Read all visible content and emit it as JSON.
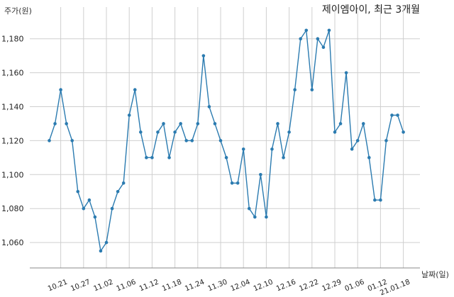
{
  "chart_data": {
    "type": "line",
    "title": "제이엠아이, 최근 3개월",
    "ylabel": "주가(원)",
    "xlabel": "날짜(일)",
    "ylim": [
      1045,
      1192
    ],
    "y_ticks": [
      1060,
      1080,
      1100,
      1120,
      1140,
      1160,
      1180
    ],
    "y_tick_labels": [
      "1,060",
      "1,080",
      "1,100",
      "1,120",
      "1,140",
      "1,160",
      "1,180"
    ],
    "x_tick_labels": [
      "10.21",
      "10.27",
      "11.02",
      "11.06",
      "11.12",
      "11.18",
      "11.24",
      "11.30",
      "12.04",
      "12.10",
      "12.16",
      "12.22",
      "12.29",
      "01.06",
      "01.12",
      "21.01.18"
    ],
    "x_tick_index": [
      2,
      6,
      10,
      14,
      18,
      22,
      26,
      30,
      34,
      38,
      42,
      46,
      50,
      54,
      58,
      62
    ],
    "grid": true,
    "series": [
      {
        "color": "#2b7bb0",
        "values": [
          1120,
          1130,
          1150,
          1130,
          1120,
          1090,
          1080,
          1085,
          1075,
          1055,
          1060,
          1080,
          1090,
          1095,
          1135,
          1150,
          1125,
          1110,
          1110,
          1125,
          1130,
          1110,
          1125,
          1130,
          1120,
          1120,
          1130,
          1170,
          1140,
          1130,
          1120,
          1110,
          1095,
          1095,
          1115,
          1080,
          1075,
          1100,
          1075,
          1115,
          1130,
          1110,
          1125,
          1150,
          1180,
          1185,
          1150,
          1180,
          1175,
          1185,
          1125,
          1130,
          1160,
          1115,
          1120,
          1130,
          1110,
          1085,
          1085,
          1120,
          1135,
          1135,
          1125
        ]
      }
    ]
  }
}
